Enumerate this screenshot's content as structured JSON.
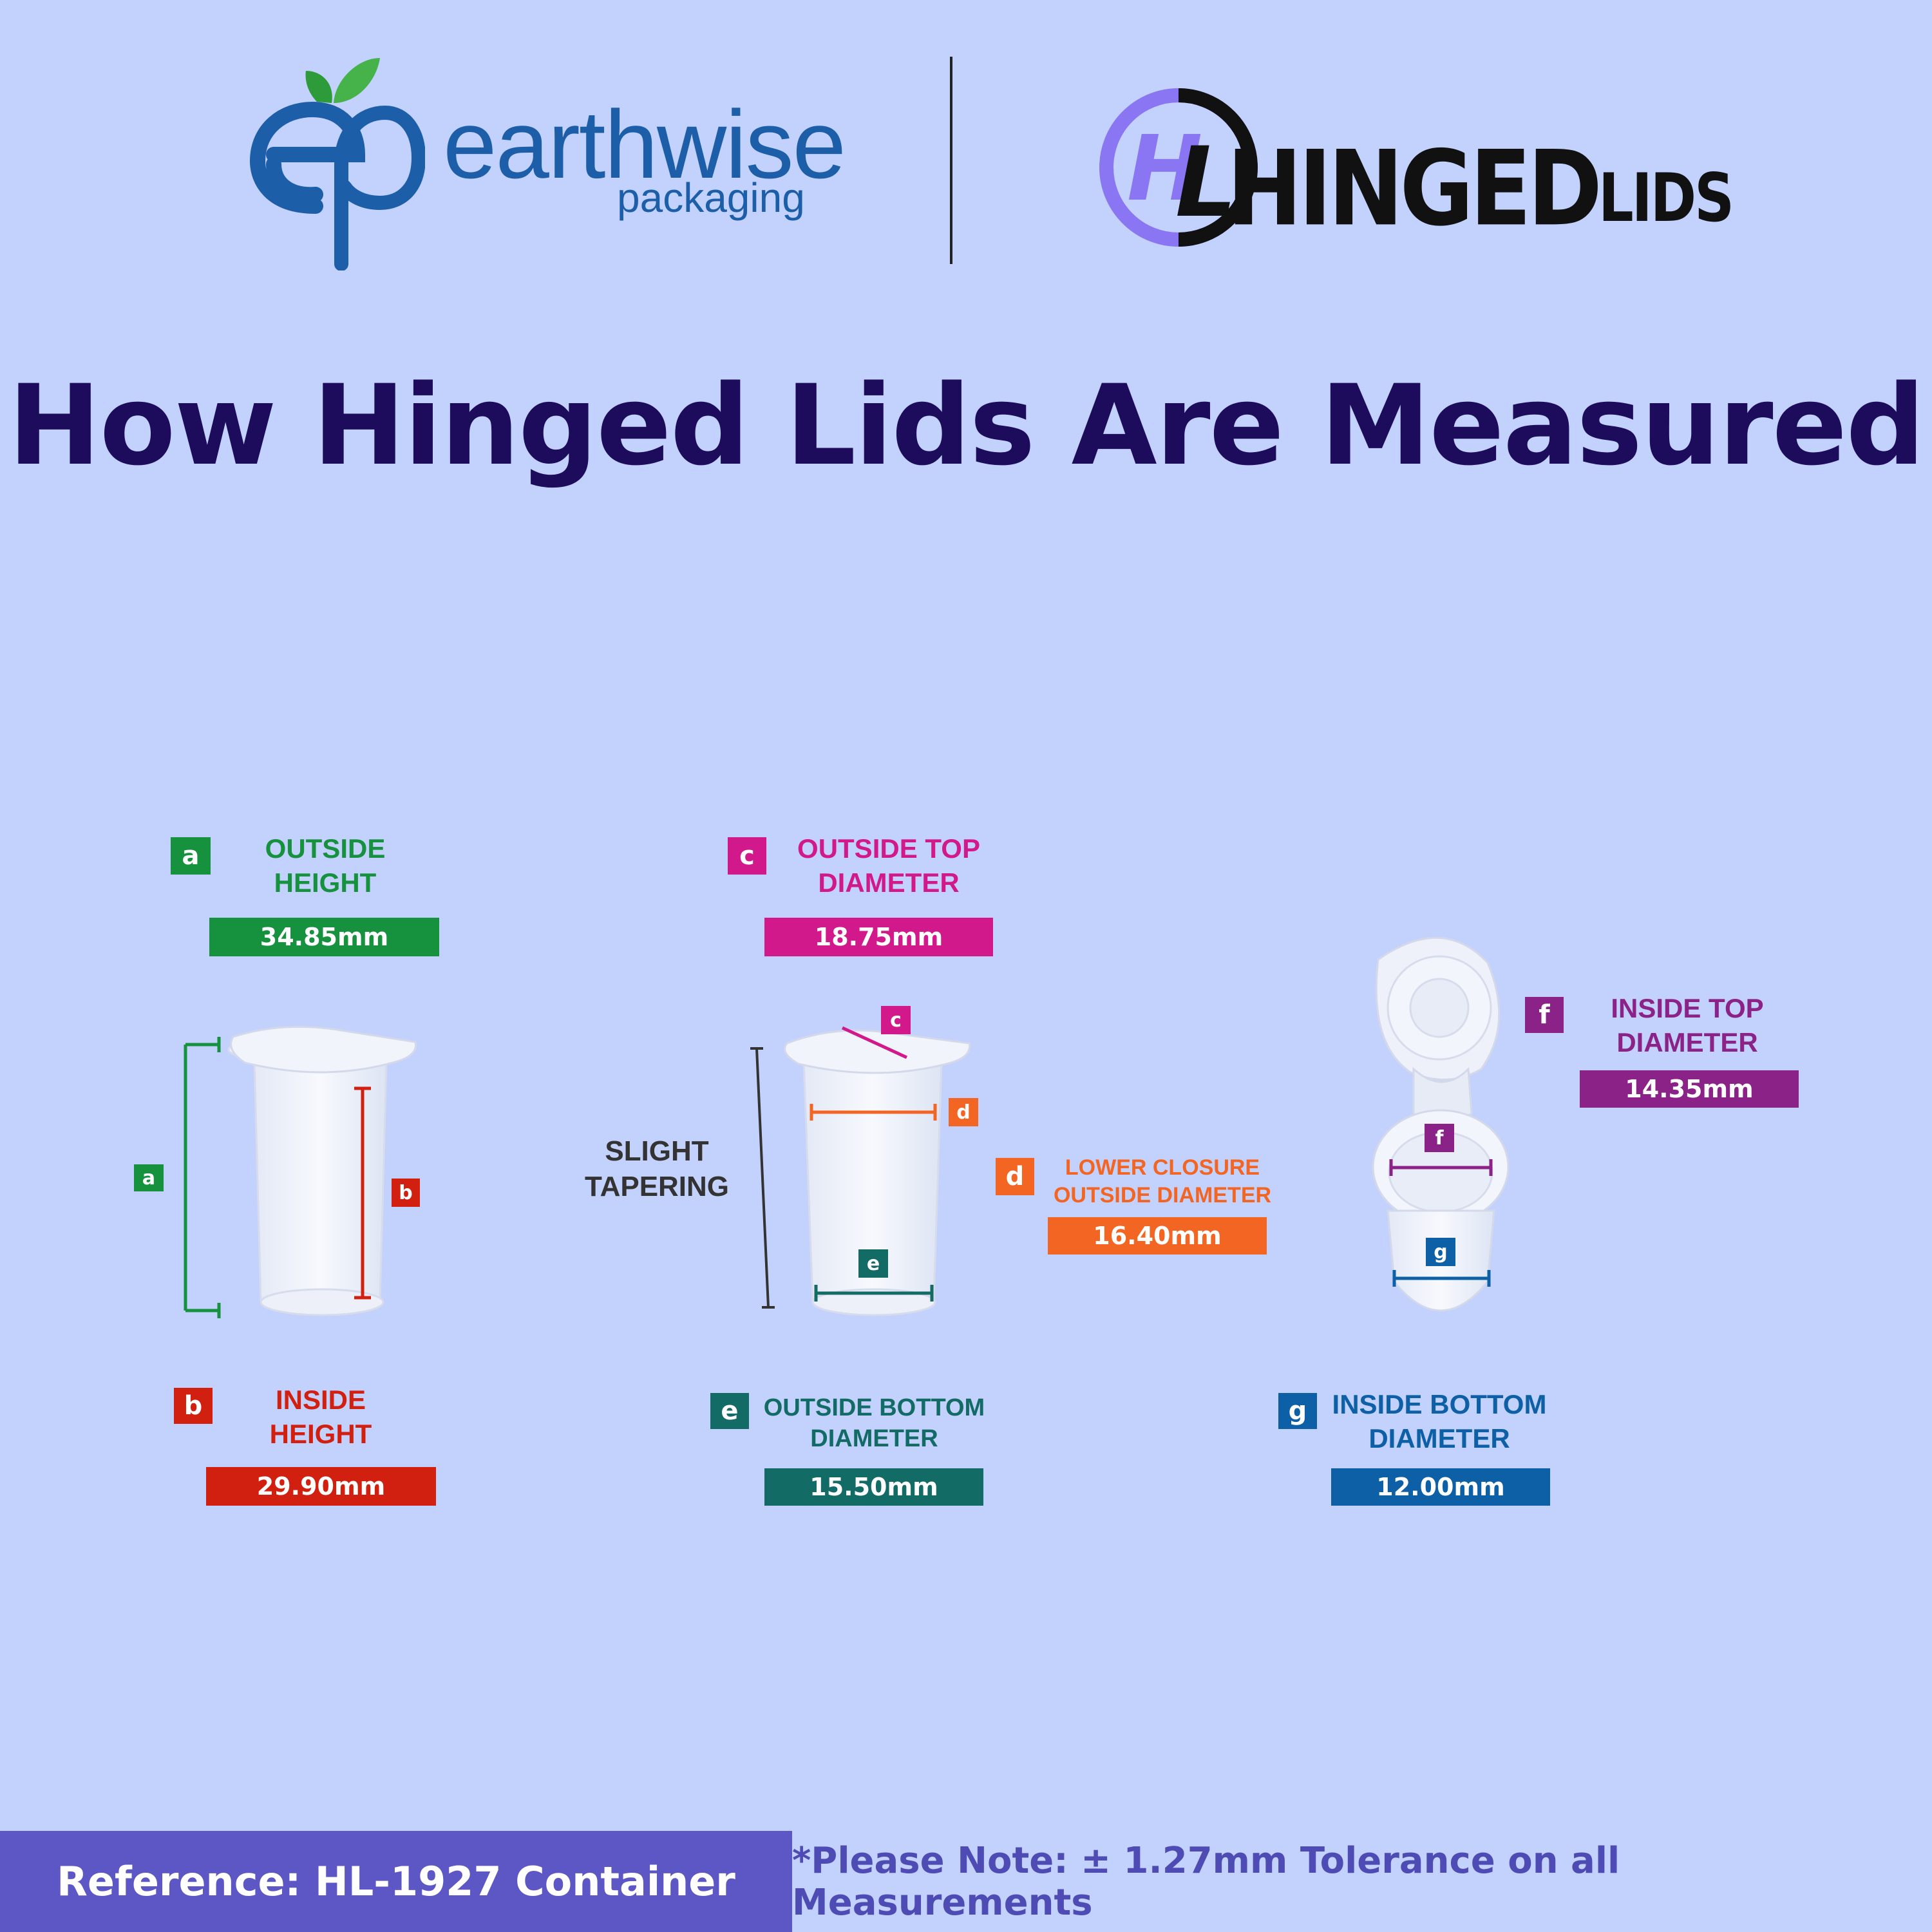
{
  "header": {
    "earthwise_brand": "earthwise",
    "earthwise_sub": "packaging",
    "hinged_word": "HINGED",
    "hinged_lids": "LIDS"
  },
  "title": "How Hinged Lids Are Measured",
  "diagram": {
    "slight_tapering": "SLIGHT\nTAPERING",
    "labels": [
      {
        "letter": "a",
        "name": "OUTSIDE\nHEIGHT",
        "value": "34.85mm",
        "color": "#16913e"
      },
      {
        "letter": "b",
        "name": "INSIDE\nHEIGHT",
        "value": "29.90mm",
        "color": "#d1200f"
      },
      {
        "letter": "c",
        "name": "OUTSIDE TOP\nDIAMETER",
        "value": "18.75mm",
        "color": "#d2198b"
      },
      {
        "letter": "d",
        "name": "LOWER CLOSURE\nOUTSIDE DIAMETER",
        "value": "16.40mm",
        "color": "#f26522"
      },
      {
        "letter": "e",
        "name": "OUTSIDE BOTTOM\nDIAMETER",
        "value": "15.50mm",
        "color": "#136b66"
      },
      {
        "letter": "f",
        "name": "INSIDE TOP\nDIAMETER",
        "value": "14.35mm",
        "color": "#8b2288"
      },
      {
        "letter": "g",
        "name": "INSIDE BOTTOM\nDIAMETER",
        "value": "12.00mm",
        "color": "#0d5fa6"
      }
    ]
  },
  "footer": {
    "reference": "Reference: HL-1927 Container",
    "note": "*Please Note: ± 1.27mm Tolerance on all Measurements"
  },
  "colors": {
    "background": "#c3d1fd",
    "title": "#1d0b5c",
    "footer_left": "#5c57c5",
    "brand_blue": "#1d5ea8",
    "hl_purple": "#8a75f3"
  }
}
